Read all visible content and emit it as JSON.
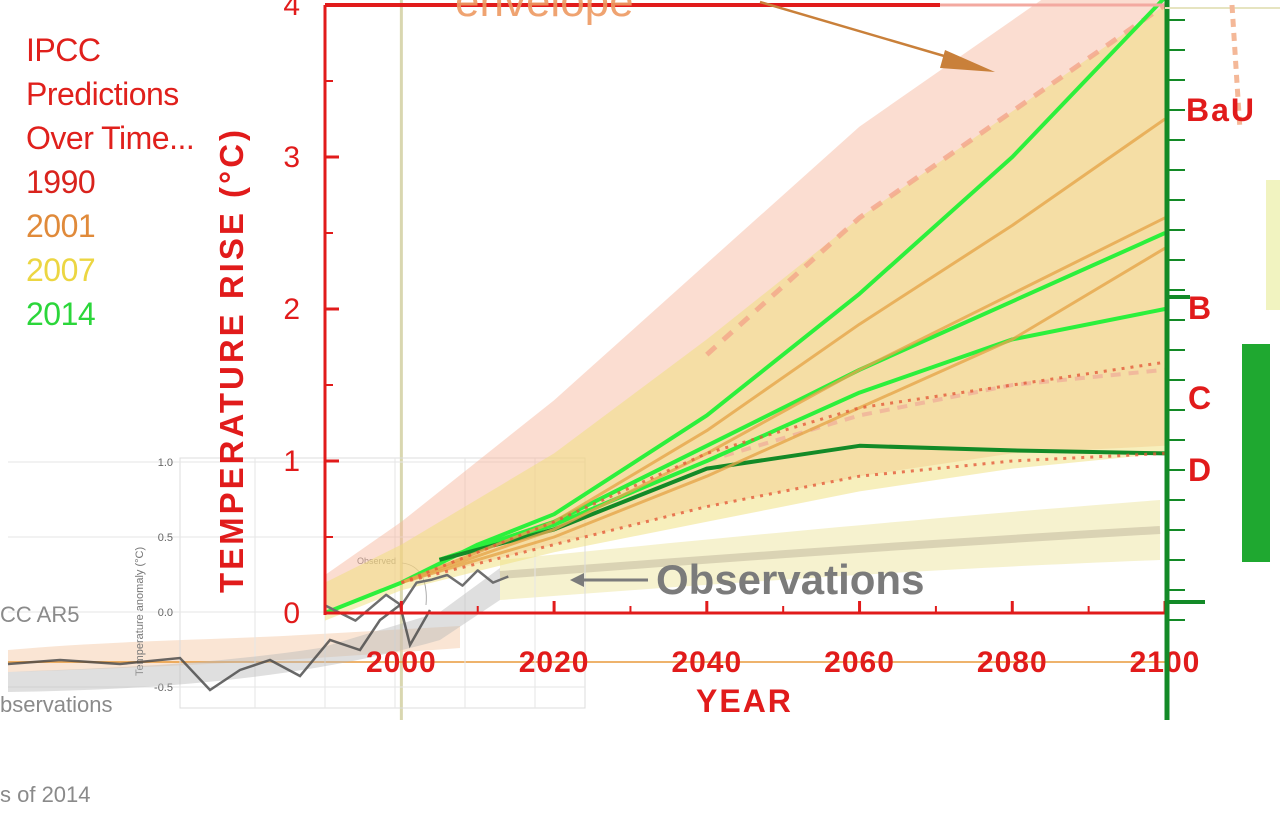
{
  "legend": {
    "title_lines": [
      "IPCC",
      "Predictions",
      "Over Time..."
    ],
    "years": [
      "1990",
      "2001",
      "2007",
      "2014"
    ],
    "colors": {
      "1990": "#d9231d",
      "2001": "#e08a3a",
      "2007": "#ecd642",
      "2014": "#2bd63a"
    }
  },
  "ar5_note": {
    "lines": [
      "CC AR5",
      "bservations",
      "s of 2014"
    ]
  },
  "observations_label": "Observations",
  "inset": {
    "ylabel": "Temperature anomaly (°C)",
    "yticks": [
      "1.0",
      "0.5",
      "0.0",
      "-0.5"
    ],
    "observed_label": "Observed"
  },
  "envelope_label": "envelope",
  "scenario_labels": [
    "BaU",
    "B",
    "C",
    "D"
  ],
  "colors": {
    "axis_red": "#e11b1b",
    "green_dark": "#138a27",
    "green_bright": "#2cf03c",
    "obs_gray": "#6f6f6f"
  },
  "chart_data": {
    "type": "line",
    "title": "",
    "xlabel": "YEAR",
    "ylabel": "TEMPERATURE RISE (°C)",
    "xlim": [
      1990,
      2100
    ],
    "ylim": [
      0,
      4
    ],
    "x_ticks": [
      2000,
      2020,
      2040,
      2060,
      2080,
      2100
    ],
    "x_tick_labels": [
      "2000",
      "2020",
      "2040",
      "2060",
      "2080",
      "2100"
    ],
    "y_ticks": [
      0,
      1,
      2,
      3,
      4
    ],
    "y_tick_labels": [
      "0",
      "1",
      "2",
      "3",
      "4"
    ],
    "grid": false,
    "bands": [
      {
        "edition": "1990",
        "x": [
          1990,
          2000,
          2020,
          2040,
          2060,
          2080,
          2100
        ],
        "low": [
          0.0,
          0.2,
          0.45,
          0.7,
          0.9,
          1.05,
          1.1
        ],
        "high": [
          0.25,
          0.6,
          1.4,
          2.3,
          3.2,
          3.9,
          4.6
        ]
      },
      {
        "edition": "2007",
        "x": [
          1990,
          2000,
          2020,
          2040,
          2060,
          2080,
          2100
        ],
        "low": [
          -0.05,
          0.15,
          0.4,
          0.6,
          0.8,
          0.95,
          1.05
        ],
        "high": [
          0.2,
          0.45,
          1.05,
          1.8,
          2.6,
          3.3,
          4.0
        ]
      }
    ],
    "series": [
      {
        "name": "2014",
        "x": [
          1990,
          2000,
          2010,
          2020,
          2040,
          2060,
          2080,
          2100
        ],
        "values": [
          0.0,
          0.2,
          0.45,
          0.65,
          1.3,
          2.1,
          3.0,
          4.05
        ]
      },
      {
        "name": "2014",
        "x": [
          2005,
          2020,
          2040,
          2060,
          2080,
          2100
        ],
        "values": [
          0.35,
          0.6,
          1.1,
          1.6,
          2.05,
          2.5
        ]
      },
      {
        "name": "2014",
        "x": [
          2005,
          2020,
          2040,
          2060,
          2080,
          2100
        ],
        "values": [
          0.35,
          0.58,
          1.0,
          1.45,
          1.8,
          2.0
        ]
      },
      {
        "name": "2014",
        "x": [
          2005,
          2020,
          2040,
          2060,
          2080,
          2100
        ],
        "values": [
          0.35,
          0.55,
          0.95,
          1.1,
          1.07,
          1.05
        ]
      },
      {
        "name": "2001",
        "x": [
          2000,
          2020,
          2040,
          2060,
          2080,
          2100
        ],
        "values": [
          0.2,
          0.6,
          1.2,
          1.9,
          2.55,
          3.25
        ]
      },
      {
        "name": "2001",
        "x": [
          2000,
          2020,
          2040,
          2060,
          2080,
          2100
        ],
        "values": [
          0.2,
          0.55,
          1.05,
          1.6,
          2.1,
          2.6
        ]
      },
      {
        "name": "2001",
        "x": [
          2000,
          2020,
          2040,
          2060,
          2080,
          2100
        ],
        "values": [
          0.2,
          0.5,
          0.9,
          1.35,
          1.8,
          2.4
        ]
      },
      {
        "name": "1990",
        "x": [
          2000,
          2020,
          2040,
          2060,
          2080,
          2100
        ],
        "values": [
          0.2,
          0.45,
          0.7,
          0.9,
          1.0,
          1.05
        ]
      },
      {
        "name": "1990",
        "x": [
          2000,
          2020,
          2040,
          2060,
          2080,
          2100
        ],
        "values": [
          0.2,
          0.6,
          1.05,
          1.35,
          1.5,
          1.65
        ]
      }
    ],
    "observations": {
      "name": "Observed",
      "x": [
        1990,
        1994,
        1998,
        2000,
        2002,
        2004,
        2006,
        2008,
        2010,
        2012,
        2014
      ],
      "values": [
        0.05,
        -0.05,
        0.12,
        0.05,
        0.2,
        0.22,
        0.25,
        0.18,
        0.28,
        0.2,
        0.24
      ]
    }
  }
}
